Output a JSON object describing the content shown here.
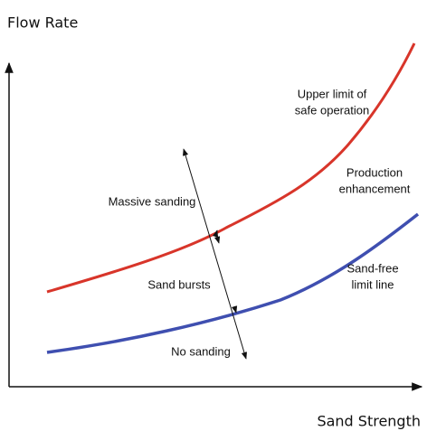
{
  "axes": {
    "y_label": "Flow Rate",
    "x_label": "Sand Strength"
  },
  "labels": {
    "upper_limit": [
      "Upper limit of",
      "safe operation"
    ],
    "production": [
      "Production",
      "enhancement"
    ],
    "sand_free": [
      "Sand-free",
      "limit line"
    ],
    "massive": "Massive sanding",
    "bursts": "Sand bursts",
    "no_sanding": "No sanding"
  }
}
